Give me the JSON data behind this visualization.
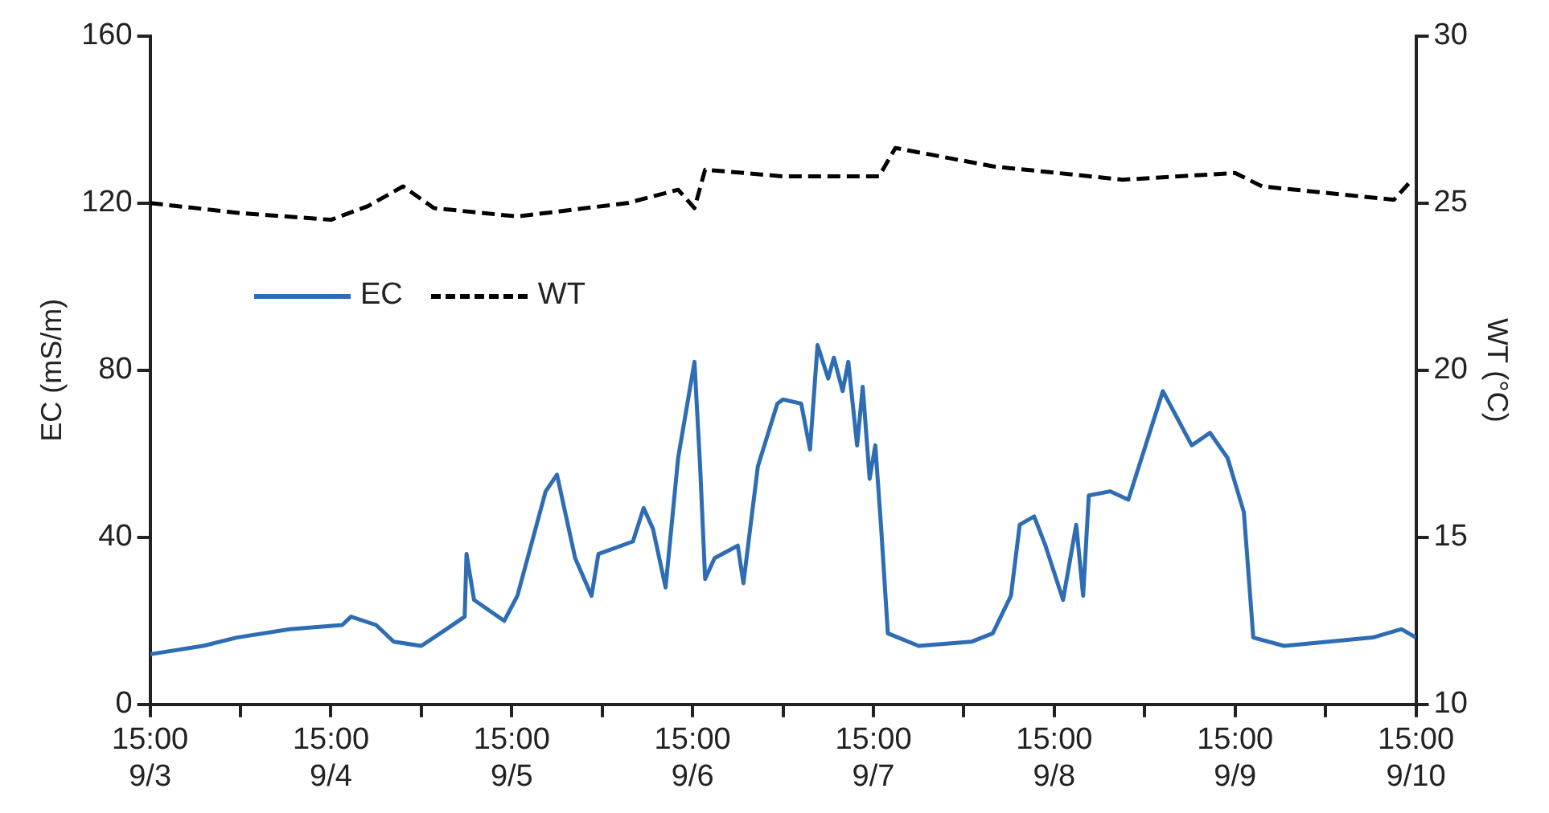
{
  "chart_data": {
    "type": "line",
    "ylabel": "EC (mS/m)",
    "y2label": "WT (°C)",
    "xlim": [
      "--09-03T15:00",
      "--09-10T15:00"
    ],
    "xticks": [
      {
        "value": "--09-03T15:00",
        "label": "15:00\n9/3"
      },
      {
        "value": "--09-04T03:00",
        "label": null
      },
      {
        "value": "--09-04T15:00",
        "label": "15:00\n9/4"
      },
      {
        "value": "--09-05T03:00",
        "label": null
      },
      {
        "value": "--09-05T15:00",
        "label": "15:00\n9/5"
      },
      {
        "value": "--09-06T03:00",
        "label": null
      },
      {
        "value": "--09-06T15:00",
        "label": "15:00\n9/6"
      },
      {
        "value": "--09-07T03:00",
        "label": null
      },
      {
        "value": "--09-07T15:00",
        "label": "15:00\n9/7"
      },
      {
        "value": "--09-08T03:00",
        "label": null
      },
      {
        "value": "--09-08T15:00",
        "label": "15:00\n9/8"
      },
      {
        "value": "--09-09T03:00",
        "label": null
      },
      {
        "value": "--09-09T15:00",
        "label": "15:00\n9/9"
      },
      {
        "value": "--09-10T03:00",
        "label": null
      },
      {
        "value": "--09-10T15:00",
        "label": "15:00\n9/10"
      }
    ],
    "ylim": [
      0,
      160
    ],
    "yticks": [
      0,
      40,
      80,
      120,
      160
    ],
    "y2lim": [
      10,
      30
    ],
    "y2ticks": [
      10,
      15,
      20,
      25,
      30
    ],
    "grid": false,
    "legend": "top left",
    "marker": "none",
    "series": [
      {
        "name": "EC",
        "color": "#2e6db4",
        "line_style": "solid",
        "x": [
          "--09-03T15:00",
          "--09-03T22:00",
          "--09-04T02:30",
          "--09-04T09:30",
          "--09-04T16:30",
          "--09-04T17:40",
          "--09-04T21:00",
          "--09-04T23:20",
          "--09-05T03:00",
          "--09-05T06:20",
          "--09-05T08:45",
          "--09-05T09:00",
          "--09-05T10:00",
          "--09-05T14:00",
          "--09-05T15:45",
          "--09-05T19:30",
          "--09-05T21:00",
          "--09-05T23:25",
          "--09-06T01:35",
          "--09-06T02:30",
          "--09-06T07:05",
          "--09-06T08:30",
          "--09-06T09:45",
          "--09-06T11:25",
          "--09-06T13:05",
          "--09-06T15:15",
          "--09-06T16:00",
          "--09-06T16:40",
          "--09-06T17:55",
          "--09-06T21:00",
          "--09-06T21:45",
          "--09-06T23:40",
          "--09-07T02:15",
          "--09-07T03:00",
          "--09-07T05:25",
          "--09-07T06:35",
          "--09-07T07:35",
          "--09-07T09:00",
          "--09-07T09:45",
          "--09-07T10:55",
          "--09-07T11:40",
          "--09-07T12:50",
          "--09-07T13:35",
          "--09-07T14:30",
          "--09-07T15:15",
          "--09-07T16:00",
          "--09-07T16:55",
          "--09-07T21:00",
          "--09-08T04:00",
          "--09-08T06:50",
          "--09-08T09:15",
          "--09-08T10:25",
          "--09-08T12:20",
          "--09-08T13:50",
          "--09-08T16:10",
          "--09-08T17:55",
          "--09-08T18:50",
          "--09-08T19:35",
          "--09-08T22:25",
          "--09-09T00:50",
          "--09-09T05:25",
          "--09-09T09:15",
          "--09-09T11:40",
          "--09-09T14:00",
          "--09-09T16:10",
          "--09-09T17:25",
          "--09-09T21:30",
          "--09-10T09:15",
          "--09-10T13:05",
          "--09-10T15:00"
        ],
        "values": [
          12,
          14,
          16,
          18,
          19,
          21,
          19,
          15,
          14,
          18,
          21,
          36,
          25,
          20,
          26,
          51,
          55,
          35,
          26,
          36,
          39,
          47,
          42,
          28,
          59,
          82,
          57,
          30,
          35,
          38,
          29,
          57,
          72,
          73,
          72,
          61,
          86,
          78,
          83,
          75,
          82,
          62,
          76,
          54,
          62,
          43,
          17,
          14,
          15,
          17,
          26,
          43,
          45,
          38,
          25,
          43,
          26,
          50,
          51,
          49,
          75,
          62,
          65,
          59,
          46,
          16,
          14,
          16,
          18,
          16
        ]
      },
      {
        "name": "WT",
        "color": "#000000",
        "line_style": "dashed",
        "axis": "y2",
        "x": [
          "--09-03T15:00",
          "--09-04T03:00",
          "--09-04T15:00",
          "--09-04T19:50",
          "--09-05T00:35",
          "--09-05T04:40",
          "--09-05T15:45",
          "--09-06T06:20",
          "--09-06T13:05",
          "--09-06T15:15",
          "--09-06T16:40",
          "--09-07T03:00",
          "--09-07T15:45",
          "--09-07T17:55",
          "--09-08T06:50",
          "--09-09T00:05",
          "--09-09T15:00",
          "--09-09T18:35",
          "--09-10T12:05",
          "--09-10T14:30"
        ],
        "values": [
          25,
          24.7,
          24.5,
          24.9,
          25.5,
          24.85,
          24.6,
          25,
          25.4,
          24.85,
          26,
          25.8,
          25.8,
          26.65,
          26.1,
          25.7,
          25.9,
          25.5,
          25.1,
          25.7
        ]
      }
    ]
  }
}
